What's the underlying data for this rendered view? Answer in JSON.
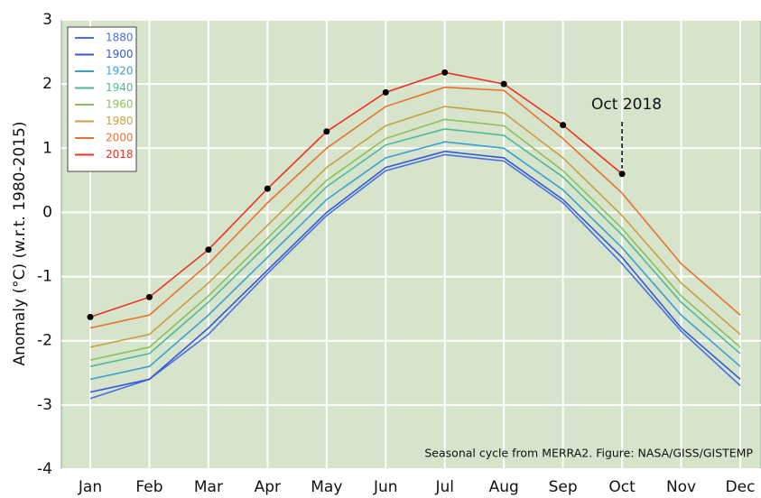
{
  "chart_data": {
    "type": "line",
    "y_label": "Anomaly (°C) (w.r.t. 1980-2015)",
    "annotation": "Oct 2018",
    "credit": "Seasonal cycle from MERRA2. Figure: NASA/GISS/GISTEMP",
    "categories": [
      "Jan",
      "Feb",
      "Mar",
      "Apr",
      "May",
      "Jun",
      "Jul",
      "Aug",
      "Sep",
      "Oct",
      "Nov",
      "Dec"
    ],
    "ylim": [
      -4,
      3
    ],
    "yticks": [
      -4,
      -3,
      -2,
      -1,
      0,
      1,
      2,
      3
    ],
    "grid": true,
    "background": "#d6e4cb",
    "legend_position": "upper left",
    "series": [
      {
        "name": "1880",
        "color": "#4a6fe3",
        "values": [
          -2.9,
          -2.6,
          -1.9,
          -0.95,
          -0.05,
          0.65,
          0.9,
          0.8,
          0.15,
          -0.8,
          -1.85,
          -2.7
        ]
      },
      {
        "name": "1900",
        "color": "#3559d6",
        "values": [
          -2.8,
          -2.6,
          -1.8,
          -0.9,
          0.0,
          0.7,
          0.95,
          0.85,
          0.2,
          -0.7,
          -1.8,
          -2.6
        ]
      },
      {
        "name": "1920",
        "color": "#3aa0d2",
        "values": [
          -2.6,
          -2.4,
          -1.6,
          -0.7,
          0.2,
          0.85,
          1.1,
          1.0,
          0.35,
          -0.55,
          -1.6,
          -2.4
        ]
      },
      {
        "name": "1940",
        "color": "#4fb89e",
        "values": [
          -2.4,
          -2.2,
          -1.4,
          -0.5,
          0.4,
          1.05,
          1.3,
          1.2,
          0.55,
          -0.35,
          -1.4,
          -2.2
        ]
      },
      {
        "name": "1960",
        "color": "#8cbf5c",
        "values": [
          -2.3,
          -2.1,
          -1.3,
          -0.4,
          0.5,
          1.15,
          1.45,
          1.35,
          0.65,
          -0.25,
          -1.3,
          -2.1
        ]
      },
      {
        "name": "1980",
        "color": "#c9a040",
        "values": [
          -2.1,
          -1.9,
          -1.1,
          -0.2,
          0.7,
          1.35,
          1.65,
          1.55,
          0.85,
          -0.05,
          -1.1,
          -1.9
        ]
      },
      {
        "name": "2000",
        "color": "#e8722f",
        "values": [
          -1.8,
          -1.6,
          -0.8,
          0.15,
          1.0,
          1.65,
          1.95,
          1.9,
          1.15,
          0.3,
          -0.8,
          -1.6
        ]
      },
      {
        "name": "2018",
        "color": "#f0301e",
        "marker_color": "#000000",
        "values": [
          -1.63,
          -1.32,
          -0.58,
          0.37,
          1.26,
          1.87,
          2.18,
          2.0,
          1.36,
          0.6,
          null,
          null
        ]
      }
    ]
  }
}
